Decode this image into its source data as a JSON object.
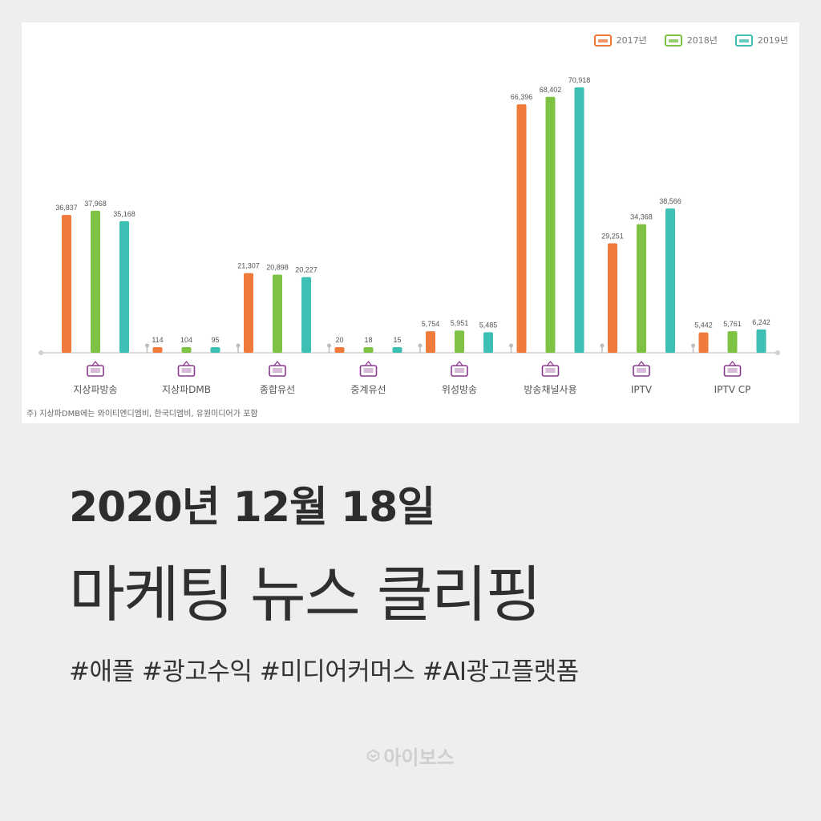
{
  "chart_data": {
    "type": "bar",
    "categories": [
      "지상파방송",
      "지상파DMB",
      "종합유선",
      "중계유선",
      "위성방송",
      "방송채널사용",
      "IPTV",
      "IPTV CP"
    ],
    "series": [
      {
        "name": "2017년",
        "color": "#f07a3a",
        "values": [
          36837,
          114,
          21307,
          20,
          5754,
          66396,
          29251,
          5442
        ],
        "labels": [
          "36,837",
          "114",
          "21,307",
          "20",
          "5,754",
          "66,396",
          "29,251",
          "5,442"
        ]
      },
      {
        "name": "2018년",
        "color": "#7dc242",
        "values": [
          37968,
          104,
          20898,
          18,
          5951,
          68402,
          34368,
          5761
        ],
        "labels": [
          "37,968",
          "104",
          "20,898",
          "18",
          "5,951",
          "68,402",
          "34,368",
          "5,761"
        ]
      },
      {
        "name": "2019년",
        "color": "#3dbfb4",
        "values": [
          35168,
          95,
          20227,
          15,
          5485,
          70918,
          38566,
          6242
        ],
        "labels": [
          "35,168",
          "95",
          "20,227",
          "15",
          "5,485",
          "70,918",
          "38,566",
          "6,242"
        ]
      }
    ],
    "ylim": [
      0,
      75000
    ],
    "grid": false,
    "legend_position": "top-right",
    "category_icons": [
      "tv-icon",
      "dmb-icon",
      "antenna-icon",
      "relay-icon",
      "satellite-icon",
      "broadcast-channel-icon",
      "iptv-icon",
      "iptv-cp-icon"
    ],
    "icon_color": "#8b3a8f",
    "footnote": "주) 지상파DMB에는 와이티엔디엠비, 한국디엠비, 유원미디어가 포함"
  },
  "headline": "2020년 12월 18일",
  "subtitle": "마케팅 뉴스 클리핑",
  "hashtags": "#애플 #광고수익 #미디어커머스 #AI광고플랫폼",
  "brand": "아이보스"
}
